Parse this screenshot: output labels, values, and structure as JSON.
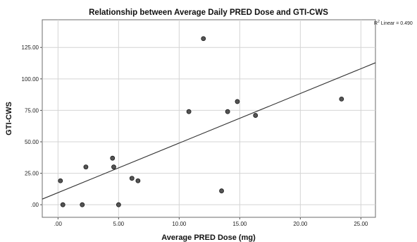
{
  "chart_data": {
    "type": "scatter",
    "title": "Relationship between Average Daily PRED Dose and GTI-CWS",
    "xlabel": "Average PRED Dose (mg)",
    "ylabel": "GTI-CWS",
    "xlim": [
      -1.3,
      26.2
    ],
    "ylim": [
      -10,
      147
    ],
    "xticks": [
      0,
      5,
      10,
      15,
      20,
      25
    ],
    "xtick_labels": [
      ".00",
      "5.00",
      "10.00",
      "15.00",
      "20.00",
      "25.00"
    ],
    "yticks": [
      0,
      25,
      50,
      75,
      100,
      125
    ],
    "ytick_labels": [
      ".00",
      "25.00",
      "50.00",
      "75.00",
      "100.00",
      "125.00"
    ],
    "grid": true,
    "points": [
      {
        "x": 0.2,
        "y": 19
      },
      {
        "x": 0.4,
        "y": 0
      },
      {
        "x": 2.0,
        "y": 0
      },
      {
        "x": 2.3,
        "y": 30
      },
      {
        "x": 4.5,
        "y": 37
      },
      {
        "x": 4.6,
        "y": 30
      },
      {
        "x": 5.0,
        "y": 0
      },
      {
        "x": 6.1,
        "y": 21
      },
      {
        "x": 6.6,
        "y": 19
      },
      {
        "x": 10.8,
        "y": 74
      },
      {
        "x": 12.0,
        "y": 132
      },
      {
        "x": 13.5,
        "y": 11
      },
      {
        "x": 14.0,
        "y": 74
      },
      {
        "x": 14.8,
        "y": 82
      },
      {
        "x": 16.3,
        "y": 71
      },
      {
        "x": 23.4,
        "y": 84
      }
    ],
    "fit_line": {
      "label": "R² Linear = 0.490",
      "intercept": 9.6,
      "slope": 3.94
    }
  }
}
